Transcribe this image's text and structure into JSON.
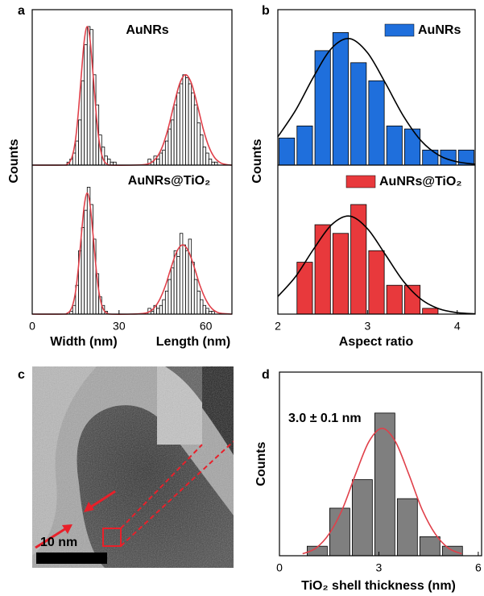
{
  "chart_data": [
    {
      "type": "histogram",
      "panel": "a",
      "y_label": "Counts",
      "x_labels": [
        "Width (nm)",
        "Length (nm)"
      ],
      "xlim": [
        0,
        69
      ],
      "xticks": [
        0,
        30,
        60
      ],
      "subplots": [
        {
          "label": "AuNRs",
          "ylim": [
            0,
            50
          ],
          "series": [
            {
              "color": "#ffffff",
              "bins": [
                12,
                13,
                14,
                15,
                16,
                17,
                18,
                19,
                20,
                21,
                22,
                23,
                24,
                25,
                26,
                27,
                28,
                29
              ],
              "values": [
                1,
                2,
                4,
                8,
                15,
                28,
                40,
                46,
                45,
                30,
                20,
                10,
                6,
                3,
                2,
                1,
                1
              ]
            },
            {
              "color": "#ffffff",
              "bins": [
                40,
                41,
                42,
                43,
                44,
                45,
                46,
                47,
                48,
                49,
                50,
                51,
                52,
                53,
                54,
                55,
                56,
                57,
                58,
                59,
                60,
                61,
                62,
                63,
                64,
                65,
                66
              ],
              "values": [
                2,
                1,
                3,
                2,
                4,
                5,
                8,
                12,
                15,
                20,
                24,
                27,
                30,
                29,
                27,
                24,
                20,
                14,
                10,
                6,
                4,
                2,
                1,
                1,
                0,
                0
              ]
            }
          ],
          "fit": {
            "color": "#e0404a",
            "x": [
              0,
              11,
              12,
              13,
              14,
              15,
              16,
              17,
              18,
              19,
              20,
              21,
              22,
              23,
              24,
              25,
              26,
              27,
              35,
              39,
              41,
              43,
              45,
              47,
              49,
              51,
              53,
              55,
              57,
              59,
              61,
              63,
              65,
              67,
              69
            ],
            "values": [
              0,
              0,
              0.3,
              1.1,
              3.5,
              8.8,
              18.2,
              30.4,
              41.5,
              46,
              41.5,
              30.4,
              18.2,
              8.8,
              3.5,
              1.1,
              0.3,
              0,
              0,
              0.2,
              0.8,
              2.5,
              6.2,
              12.3,
              20.2,
              27.2,
              30,
              27.2,
              20.2,
              12.3,
              6.2,
              2.5,
              0.8,
              0.2,
              0
            ]
          }
        },
        {
          "label": "AuNRs@TiO₂",
          "ylim": [
            0,
            50
          ],
          "series": [
            {
              "color": "#ffffff",
              "bins": [
                13,
                14,
                15,
                16,
                17,
                18,
                19,
                20,
                21,
                22,
                23,
                24,
                25,
                26
              ],
              "values": [
                1,
                3,
                10,
                22,
                30,
                36,
                44,
                38,
                26,
                14,
                6,
                3,
                1
              ]
            },
            {
              "color": "#ffffff",
              "bins": [
                40,
                41,
                42,
                43,
                44,
                45,
                46,
                47,
                48,
                49,
                50,
                51,
                52,
                53,
                54,
                55,
                56,
                57,
                58,
                59,
                60,
                61,
                62,
                63,
                64
              ],
              "values": [
                2,
                1,
                3,
                2,
                3,
                5,
                8,
                12,
                16,
                22,
                20,
                28,
                24,
                22,
                26,
                18,
                12,
                8,
                5,
                3,
                2,
                1,
                1,
                0
              ]
            }
          ],
          "fit": {
            "color": "#e0404a",
            "x": [
              0,
              11,
              12,
              13,
              14,
              15,
              16,
              17,
              18,
              19,
              20,
              21,
              22,
              23,
              24,
              25,
              26,
              27,
              34,
              38,
              40,
              42,
              44,
              46,
              48,
              50,
              52,
              54,
              56,
              58,
              60,
              62,
              64,
              66,
              69
            ],
            "values": [
              0,
              0,
              0.3,
              1,
              3.2,
              8,
              16.6,
              27.7,
              37.8,
              42,
              37.8,
              27.7,
              16.6,
              8,
              3.2,
              1,
              0.3,
              0,
              0,
              0.2,
              0.6,
              2,
              5,
              9.8,
              16.2,
              21.8,
              24,
              21.8,
              16.2,
              9.8,
              5,
              2,
              0.6,
              0.2,
              0
            ]
          }
        }
      ]
    },
    {
      "type": "histogram",
      "panel": "b",
      "y_label": "Counts",
      "x_labels": [
        "Aspect ratio"
      ],
      "xlim": [
        2,
        4.2
      ],
      "xticks": [
        2,
        3,
        4
      ],
      "subplots": [
        {
          "ylim": [
            0,
            50
          ],
          "series": [
            {
              "name": "AuNRs",
              "color": "#1f6fdc",
              "bins": [
                2,
                2.2,
                2.4,
                2.6,
                2.8,
                3,
                3.2,
                3.4,
                3.6,
                3.8,
                4,
                4.2
              ],
              "values": [
                9,
                13,
                38,
                44,
                34,
                28,
                13,
                12,
                5,
                5,
                5
              ]
            }
          ],
          "fit": {
            "color": "#000000",
            "x": [
              2,
              2.2,
              2.4,
              2.6,
              2.8,
              3,
              3.2,
              3.4,
              3.6,
              3.8,
              4,
              4.2
            ],
            "values": [
              9.4,
              18.3,
              29.4,
              38.8,
              42,
              37.3,
              27.2,
              16.3,
              8,
              3.2,
              1.1,
              0.3
            ]
          }
        },
        {
          "ylim": [
            0,
            50
          ],
          "series": [
            {
              "name": "AuNRs@TiO₂",
              "color": "#e8393c",
              "bins": [
                2.2,
                2.4,
                2.6,
                2.8,
                3,
                3.2,
                3.4,
                3.6,
                3.8
              ],
              "values": [
                18,
                31,
                28,
                38,
                22,
                10,
                10,
                2
              ]
            }
          ],
          "fit": {
            "color": "#000000",
            "x": [
              2,
              2.2,
              2.4,
              2.6,
              2.8,
              3,
              3.2,
              3.4,
              3.6,
              3.8,
              4,
              4.2
            ],
            "values": [
              6.1,
              13.1,
              22.6,
              31,
              34,
              29.6,
              20.6,
              11.4,
              5.1,
              1.8,
              0.5,
              0.1
            ]
          }
        }
      ]
    },
    {
      "type": "histogram",
      "panel": "d",
      "y_label": "Counts",
      "x_labels": [
        "TiO₂ shell thickness (nm)"
      ],
      "xlim": [
        0,
        6.1
      ],
      "xticks": [
        0,
        3,
        6
      ],
      "subplots": [
        {
          "annotation": "3.0 ± 0.1 nm",
          "ylim": [
            0,
            18.8
          ],
          "series": [
            {
              "color": "#7f7f7f",
              "bins": [
                0.8,
                1.48,
                2.16,
                2.84,
                3.52,
                4.2,
                4.88,
                5.56
              ],
              "values": [
                1,
                5,
                8,
                15,
                6,
                2,
                1
              ]
            }
          ],
          "fit": {
            "color": "#e0404a",
            "x": [
              0.7,
              1.1,
              1.5,
              1.9,
              2.3,
              2.7,
              3.1,
              3.5,
              3.9,
              4.3,
              4.7,
              5.1,
              5.5
            ],
            "values": [
              0.2,
              0.8,
              2.3,
              4.9,
              8.6,
              12,
              13.4,
              12,
              8.6,
              4.9,
              2.3,
              0.8,
              0.2
            ]
          }
        }
      ]
    }
  ],
  "figure_c": {
    "panel": "c",
    "scale_bar": "10 nm"
  }
}
